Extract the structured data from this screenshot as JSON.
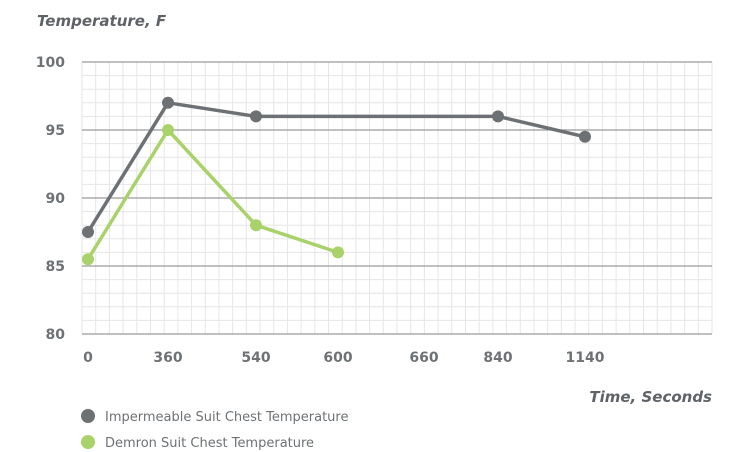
{
  "chart_data": {
    "type": "line",
    "ylabel": "Temperature, F",
    "xlabel": "Time, Seconds",
    "categories": [
      "0",
      "360",
      "540",
      "600",
      "660",
      "840",
      "1140"
    ],
    "ylim": [
      80,
      100
    ],
    "yticks": [
      80,
      85,
      90,
      95,
      100
    ],
    "grid": true,
    "legend_position": "bottom-left",
    "series": [
      {
        "name": "Impermeable Suit Chest Temperature",
        "color": "#6d7174",
        "points": [
          {
            "x": "0",
            "y": 87.5
          },
          {
            "x": "360",
            "y": 97
          },
          {
            "x": "540",
            "y": 96
          },
          {
            "x": "840",
            "y": 96
          },
          {
            "x": "1140",
            "y": 94.5
          }
        ]
      },
      {
        "name": "Demron Suit Chest Temperature",
        "color": "#a9d26a",
        "points": [
          {
            "x": "0",
            "y": 85.5
          },
          {
            "x": "360",
            "y": 95
          },
          {
            "x": "540",
            "y": 88
          },
          {
            "x": "600",
            "y": 86
          }
        ]
      }
    ]
  }
}
